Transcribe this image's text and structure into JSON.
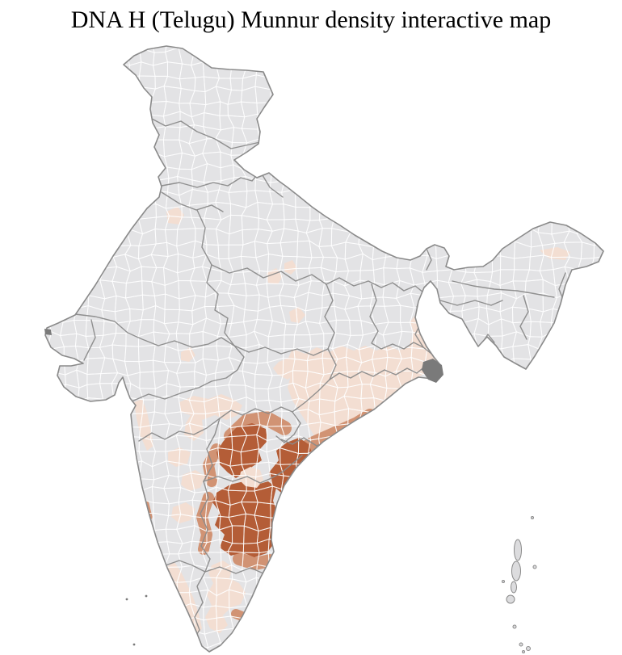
{
  "title": "DNA H (Telugu) Munnur density interactive map",
  "map_data": {
    "type": "choropleth",
    "subject": "District-level density shading over a map of India",
    "background": "#ffffff",
    "land_fill": "#e3e3e5",
    "district_line": "#ffffff",
    "boundary_line": "#8a8a8a",
    "delta_fill": "#7a7a7a",
    "island_fill": "#dcdcde",
    "palette": {
      "low": "#f3ded2",
      "medium": "#d19374",
      "high": "#b45d37"
    },
    "levels": [
      "low",
      "medium",
      "high"
    ],
    "regions": [
      {
        "id": "odisha-belt",
        "name": "Odisha and eastern belt",
        "level": "low"
      },
      {
        "id": "wb-fringe",
        "name": "West Bengal fringe",
        "level": "low"
      },
      {
        "id": "vidarbha-1",
        "name": "Vidarbha cluster",
        "level": "low"
      },
      {
        "id": "vidarbha-2",
        "name": "East Vidarbha district",
        "level": "low"
      },
      {
        "id": "mh-deccan",
        "name": "South-central Maharashtra",
        "level": "low"
      },
      {
        "id": "mh-deccan-2",
        "name": "Maharashtra south extension",
        "level": "low"
      },
      {
        "id": "konkan-coast",
        "name": "Konkan coastal strip",
        "level": "low"
      },
      {
        "id": "ka-scatter-1",
        "name": "North Karnataka district",
        "level": "low"
      },
      {
        "id": "ka-scatter-2",
        "name": "Karnataka interior district",
        "level": "low"
      },
      {
        "id": "ka-scatter-3",
        "name": "South Karnataka district",
        "level": "low"
      },
      {
        "id": "kerala-coast",
        "name": "Kerala coastal strip",
        "level": "low"
      },
      {
        "id": "tn-interior",
        "name": "Tamil Nadu interior",
        "level": "low"
      },
      {
        "id": "punjab-district",
        "name": "Punjab district",
        "level": "low"
      },
      {
        "id": "up-district-1",
        "name": "Uttar Pradesh district 1",
        "level": "low"
      },
      {
        "id": "up-district-2",
        "name": "Uttar Pradesh district 2",
        "level": "low"
      },
      {
        "id": "mp-district-1",
        "name": "Madhya Pradesh district",
        "level": "low"
      },
      {
        "id": "mp-district-2",
        "name": "West Madhya Pradesh district",
        "level": "low"
      },
      {
        "id": "assam-district",
        "name": "Upper Assam district",
        "level": "low"
      },
      {
        "id": "hyderabad-gap",
        "name": "Hyderabad urban gap",
        "level": "low"
      },
      {
        "id": "north-telangana",
        "name": "North Telangana band",
        "level": "medium",
        "paint": "stroke"
      },
      {
        "id": "coastal-andhra",
        "name": "Coastal Andhra band",
        "level": "medium",
        "paint": "stroke"
      },
      {
        "id": "telangana-west-rim",
        "name": "West Telangana rim",
        "level": "medium",
        "paint": "stroke"
      },
      {
        "id": "rayalaseema-west",
        "name": "West Rayalaseema rim",
        "level": "medium",
        "paint": "stroke"
      },
      {
        "id": "north-tamilnadu",
        "name": "North Tamil Nadu",
        "level": "medium",
        "paint": "stroke"
      },
      {
        "id": "tn-south-spot",
        "name": "South Tamil Nadu spot",
        "level": "medium",
        "paint": "stroke"
      },
      {
        "id": "ka-coast-spot",
        "name": "Coastal Karnataka spot",
        "level": "medium",
        "paint": "stroke"
      },
      {
        "id": "telangana-core",
        "name": "Telangana core",
        "level": "high"
      },
      {
        "id": "krishna-guntur",
        "name": "Krishna-Guntur delta",
        "level": "high"
      },
      {
        "id": "nellore-rayalaseema",
        "name": "Nellore-Rayalaseema",
        "level": "high"
      }
    ],
    "islands": [
      {
        "id": "andaman",
        "name": "Andaman Islands"
      },
      {
        "id": "nicobar",
        "name": "Nicobar Islands"
      },
      {
        "id": "lakshadweep",
        "name": "Lakshadweep"
      }
    ]
  }
}
